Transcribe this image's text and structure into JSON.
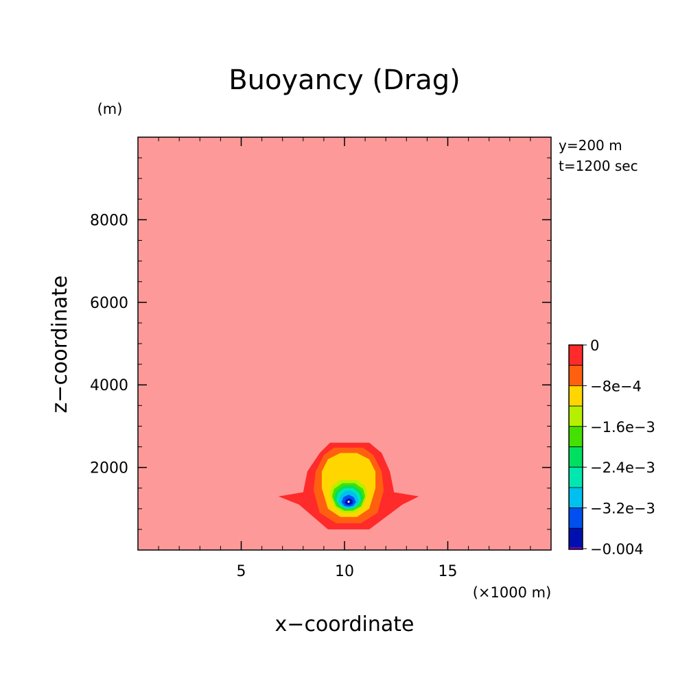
{
  "chart_data": {
    "type": "heatmap",
    "title": "Buoyancy (Drag)",
    "xlabel": "x−coordinate",
    "ylabel": "z−coordinate",
    "x_unit": "(×1000 m)",
    "y_unit": "(m)",
    "annotations": [
      "y=200 m",
      "t=1200 sec"
    ],
    "xlim": [
      0,
      20
    ],
    "ylim": [
      0,
      10000
    ],
    "x_ticks": [
      5,
      10,
      15
    ],
    "x_tick_labels": [
      "5",
      "10",
      "15"
    ],
    "y_ticks": [
      2000,
      4000,
      6000,
      8000
    ],
    "y_tick_labels": [
      "2000",
      "4000",
      "6000",
      "8000"
    ],
    "grid": false,
    "background_level": {
      "value": 0,
      "color": "#fe9999"
    },
    "contours": [
      {
        "level": "0 to -4e-4",
        "color": "#ff2a2a",
        "points": [
          [
            6.8,
            1300
          ],
          [
            8.0,
            1400
          ],
          [
            8.2,
            1900
          ],
          [
            8.8,
            2350
          ],
          [
            9.3,
            2600
          ],
          [
            11.2,
            2600
          ],
          [
            11.8,
            2350
          ],
          [
            12.2,
            1900
          ],
          [
            12.4,
            1400
          ],
          [
            13.6,
            1300
          ],
          [
            12.8,
            1100
          ],
          [
            11.2,
            500
          ],
          [
            9.2,
            500
          ],
          [
            7.8,
            1100
          ]
        ]
      },
      {
        "level": "-4e-4 to -8e-4",
        "color": "#ff6010",
        "points": [
          [
            8.5,
            1450
          ],
          [
            8.6,
            1900
          ],
          [
            9.0,
            2300
          ],
          [
            9.5,
            2480
          ],
          [
            10.9,
            2480
          ],
          [
            11.4,
            2300
          ],
          [
            11.8,
            1900
          ],
          [
            11.9,
            1450
          ],
          [
            11.6,
            900
          ],
          [
            10.8,
            650
          ],
          [
            9.6,
            650
          ],
          [
            8.8,
            900
          ]
        ]
      },
      {
        "level": "-8e-4 to -1.2e-3",
        "color": "#ffd600",
        "points": [
          [
            8.9,
            1500
          ],
          [
            8.9,
            1900
          ],
          [
            9.2,
            2200
          ],
          [
            9.8,
            2350
          ],
          [
            10.6,
            2350
          ],
          [
            11.2,
            2200
          ],
          [
            11.5,
            1900
          ],
          [
            11.5,
            1500
          ],
          [
            11.2,
            1000
          ],
          [
            10.6,
            800
          ],
          [
            9.8,
            800
          ],
          [
            9.2,
            1000
          ]
        ]
      },
      {
        "level": "-1.2e-3 to -1.6e-3",
        "color": "#b6f000",
        "points": [
          [
            9.3,
            1350
          ],
          [
            9.4,
            1550
          ],
          [
            9.8,
            1700
          ],
          [
            10.6,
            1700
          ],
          [
            11.0,
            1550
          ],
          [
            11.1,
            1350
          ],
          [
            10.9,
            1050
          ],
          [
            10.5,
            900
          ],
          [
            9.9,
            900
          ],
          [
            9.5,
            1050
          ]
        ]
      },
      {
        "level": "-1.6e-3 to -2e-3",
        "color": "#44e000",
        "points": [
          [
            9.4,
            1300
          ],
          [
            9.5,
            1480
          ],
          [
            9.9,
            1620
          ],
          [
            10.5,
            1620
          ],
          [
            10.9,
            1480
          ],
          [
            11.0,
            1300
          ],
          [
            10.8,
            1060
          ],
          [
            10.4,
            950
          ],
          [
            10.0,
            950
          ],
          [
            9.6,
            1060
          ]
        ]
      },
      {
        "level": "-2e-3 to -2.4e-3",
        "color": "#00e060",
        "points": [
          [
            9.5,
            1250
          ],
          [
            9.6,
            1420
          ],
          [
            9.95,
            1560
          ],
          [
            10.45,
            1560
          ],
          [
            10.8,
            1420
          ],
          [
            10.9,
            1250
          ],
          [
            10.7,
            1080
          ],
          [
            10.4,
            990
          ],
          [
            10.0,
            990
          ],
          [
            9.7,
            1080
          ]
        ]
      },
      {
        "level": "-2.4e-3 to -2.8e-3",
        "color": "#00e8b0",
        "points": [
          [
            9.6,
            1200
          ],
          [
            9.7,
            1380
          ],
          [
            10.0,
            1500
          ],
          [
            10.4,
            1500
          ],
          [
            10.7,
            1380
          ],
          [
            10.8,
            1200
          ],
          [
            10.6,
            1060
          ],
          [
            10.35,
            1000
          ],
          [
            10.05,
            1000
          ],
          [
            9.8,
            1060
          ]
        ]
      },
      {
        "level": "-2.8e-3 to -3.2e-3",
        "color": "#00c0f0",
        "points": [
          [
            9.7,
            1180
          ],
          [
            9.8,
            1330
          ],
          [
            10.05,
            1440
          ],
          [
            10.35,
            1440
          ],
          [
            10.6,
            1330
          ],
          [
            10.7,
            1180
          ],
          [
            10.5,
            1060
          ],
          [
            10.3,
            1020
          ],
          [
            10.1,
            1020
          ],
          [
            9.9,
            1060
          ]
        ]
      },
      {
        "level": "-3.2e-3 to -3.6e-3",
        "color": "#0050f0",
        "points": [
          [
            9.85,
            1160
          ],
          [
            9.95,
            1280
          ],
          [
            10.2,
            1340
          ],
          [
            10.45,
            1280
          ],
          [
            10.55,
            1160
          ],
          [
            10.4,
            1070
          ],
          [
            10.2,
            1050
          ],
          [
            10.0,
            1070
          ]
        ]
      },
      {
        "level": "-3.6e-3 to -0.004",
        "color": "#0010b0",
        "points": [
          [
            10.0,
            1150
          ],
          [
            10.1,
            1230
          ],
          [
            10.25,
            1250
          ],
          [
            10.4,
            1200
          ],
          [
            10.4,
            1130
          ],
          [
            10.25,
            1090
          ],
          [
            10.1,
            1100
          ]
        ]
      }
    ],
    "colorbar": {
      "colors": [
        "#ff2a2a",
        "#ff6010",
        "#ffd600",
        "#b6f000",
        "#44e000",
        "#00e060",
        "#00e8b0",
        "#00c0f0",
        "#0050f0",
        "#0010b0"
      ],
      "bottom_color": "#7a00b0",
      "labels": [
        "0",
        "−8e−4",
        "−1.6e−3",
        "−2.4e−3",
        "−3.2e−3",
        "−0.004"
      ]
    }
  }
}
